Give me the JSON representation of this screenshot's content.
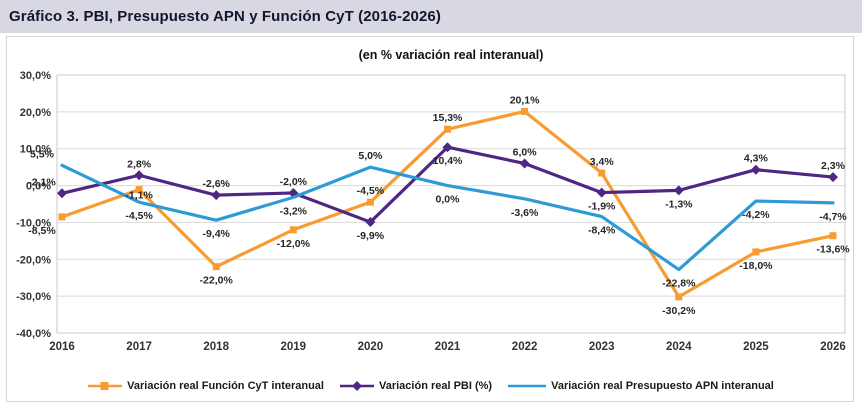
{
  "header": {
    "title": "Gráfico 3. PBI, Presupuesto APN y Función CyT (2016-2026)"
  },
  "chart_data": {
    "type": "line",
    "subtitle": "(en % variación real interanual)",
    "categories": [
      "2016",
      "2017",
      "2018",
      "2019",
      "2020",
      "2021",
      "2022",
      "2023",
      "2024",
      "2025",
      "2026"
    ],
    "ylim": [
      -40,
      30
    ],
    "y_tick_values": [
      30,
      20,
      10,
      0,
      -10,
      -20,
      -30,
      -40
    ],
    "y_tick_labels": [
      "30,0%",
      "20,0%",
      "10,0%",
      "0,0%",
      "-10,0%",
      "-20,0%",
      "-30,0%",
      "-40,0%"
    ],
    "grid": true,
    "legend_position": "bottom",
    "colors": {
      "grid": "#d9d9d9",
      "plot_border": "#c9c9c9",
      "axis_text": "#333333",
      "data_label_text": "#262626",
      "title_band": "#d8d8e2"
    },
    "series": [
      {
        "name": "Variación real Función CyT interanual",
        "color": "#f89b30",
        "marker": "square",
        "values": [
          -8.5,
          -1.1,
          -22.0,
          -12.0,
          -4.5,
          15.3,
          20.1,
          3.4,
          -30.2,
          -18.0,
          -13.6
        ],
        "point_labels": [
          "-8,5%",
          "-1,1%",
          "-22,0%",
          "-12,0%",
          "-4,5%",
          "15,3%",
          "20,1%",
          "3,4%",
          "-30,2%",
          "-18,0%",
          "-13,6%"
        ],
        "label_side": [
          "b",
          "b",
          "b",
          "b",
          "a",
          "a",
          "a",
          "a",
          "b",
          "b",
          "b"
        ],
        "label_dx": [
          -20,
          0,
          0,
          0,
          0,
          0,
          0,
          0,
          0,
          0,
          0
        ],
        "label_dy": [
          0,
          -8,
          0,
          0,
          0,
          0,
          0,
          0,
          0,
          0,
          0
        ]
      },
      {
        "name": "Variación real PBI (%)",
        "color": "#4f2683",
        "marker": "diamond",
        "values": [
          -2.1,
          2.8,
          -2.6,
          -2.0,
          -9.9,
          10.4,
          6.0,
          -1.9,
          -1.3,
          4.3,
          2.3
        ],
        "point_labels": [
          "-2,1%",
          "2,8%",
          "-2,6%",
          "-2,0%",
          "-9,9%",
          "10,4%",
          "6,0%",
          "-1,9%",
          "-1,3%",
          "4,3%",
          "2,3%"
        ],
        "label_side": [
          "a",
          "a",
          "a",
          "a",
          "b",
          "b",
          "a",
          "b",
          "b",
          "a",
          "a"
        ],
        "label_dx": [
          -20,
          0,
          0,
          0,
          0,
          0,
          0,
          0,
          0,
          0,
          0
        ],
        "label_dy": [
          0,
          0,
          0,
          0,
          0,
          0,
          0,
          0,
          0,
          0,
          0
        ]
      },
      {
        "name": "Variación real Presupuesto APN interanual",
        "color": "#2e9bd6",
        "marker": "none",
        "values": [
          5.5,
          -4.5,
          -9.4,
          -3.2,
          5.0,
          0.0,
          -3.6,
          -8.4,
          -22.8,
          -4.2,
          -4.7
        ],
        "point_labels": [
          "5,5%",
          "-4,5%",
          "-9,4%",
          "-3,2%",
          "5,0%",
          "0,0%",
          "-3,6%",
          "-8,4%",
          "-22,8%",
          "-4,2%",
          "-4,7%"
        ],
        "label_side": [
          "a",
          "b",
          "b",
          "b",
          "a",
          "b",
          "b",
          "b",
          "b",
          "b",
          "b"
        ],
        "label_dx": [
          -20,
          0,
          0,
          0,
          0,
          0,
          0,
          0,
          0,
          0,
          0
        ],
        "label_dy": [
          0,
          0,
          0,
          0,
          0,
          0,
          0,
          0,
          0,
          0,
          0
        ]
      }
    ]
  }
}
